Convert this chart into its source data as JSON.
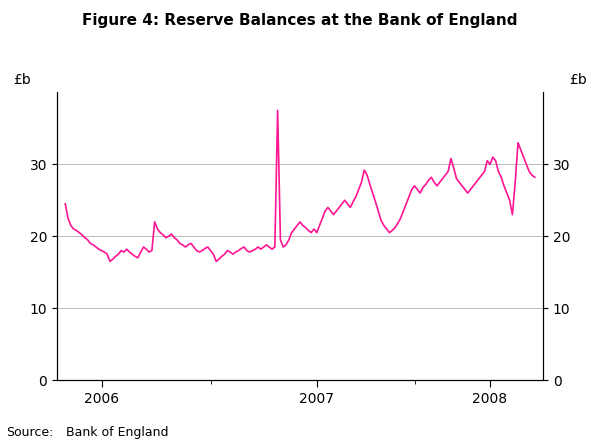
{
  "title": "Figure 4: Reserve Balances at the Bank of England",
  "ylabel_left": "£b",
  "ylabel_right": "£b",
  "source_label": "Source:",
  "source_text": "Bank of England",
  "line_color": "#FF1493",
  "ylim": [
    0,
    40
  ],
  "yticks": [
    0,
    10,
    20,
    30
  ],
  "background_color": "#ffffff",
  "line_width": 1.2,
  "grid_color": "#bbbbbb",
  "grid_linewidth": 0.7,
  "title_fontsize": 11,
  "tick_fontsize": 10,
  "source_fontsize": 9,
  "y_values": [
    24.5,
    22.5,
    21.5,
    21.0,
    20.8,
    20.5,
    20.2,
    19.8,
    19.5,
    19.0,
    18.8,
    18.5,
    18.2,
    18.0,
    17.8,
    17.5,
    16.5,
    16.8,
    17.2,
    17.5,
    18.0,
    17.8,
    18.2,
    17.8,
    17.5,
    17.2,
    17.0,
    17.8,
    18.5,
    18.2,
    17.8,
    18.0,
    22.0,
    21.0,
    20.5,
    20.2,
    19.8,
    20.0,
    20.3,
    19.8,
    19.5,
    19.0,
    18.8,
    18.5,
    18.8,
    19.0,
    18.5,
    18.0,
    17.8,
    18.0,
    18.3,
    18.5,
    18.0,
    17.5,
    16.5,
    16.8,
    17.2,
    17.5,
    18.0,
    17.8,
    17.5,
    17.8,
    18.0,
    18.3,
    18.5,
    18.0,
    17.8,
    18.0,
    18.2,
    18.5,
    18.2,
    18.5,
    18.8,
    18.5,
    18.2,
    18.5,
    37.5,
    19.5,
    18.5,
    18.8,
    19.5,
    20.5,
    21.0,
    21.5,
    22.0,
    21.5,
    21.2,
    20.8,
    20.5,
    21.0,
    20.5,
    21.5,
    22.5,
    23.5,
    24.0,
    23.5,
    23.0,
    23.5,
    24.0,
    24.5,
    25.0,
    24.5,
    24.0,
    24.8,
    25.5,
    26.5,
    27.5,
    29.2,
    28.5,
    27.2,
    26.0,
    24.8,
    23.5,
    22.2,
    21.5,
    21.0,
    20.5,
    20.8,
    21.2,
    21.8,
    22.5,
    23.5,
    24.5,
    25.5,
    26.5,
    27.0,
    26.5,
    26.0,
    26.8,
    27.2,
    27.8,
    28.2,
    27.5,
    27.0,
    27.5,
    28.0,
    28.5,
    29.0,
    30.8,
    29.5,
    28.0,
    27.5,
    27.0,
    26.5,
    26.0,
    26.5,
    27.0,
    27.5,
    28.0,
    28.5,
    29.0,
    30.5,
    30.0,
    31.0,
    30.5,
    29.0,
    28.2,
    27.0,
    26.0,
    25.0,
    23.0,
    27.5,
    33.0,
    32.0,
    31.0,
    30.0,
    29.0,
    28.5,
    28.2
  ],
  "xtick_year_positions": [
    13,
    90,
    152
  ],
  "xtick_year_labels": [
    "2006",
    "2007",
    "2008"
  ],
  "xtick_minor_positions": [
    52,
    125
  ]
}
